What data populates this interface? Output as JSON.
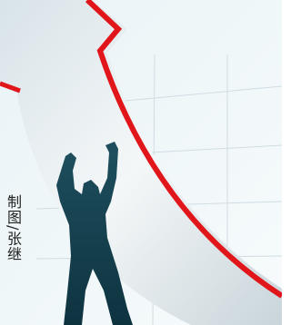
{
  "caption": "制图/张继"
}
